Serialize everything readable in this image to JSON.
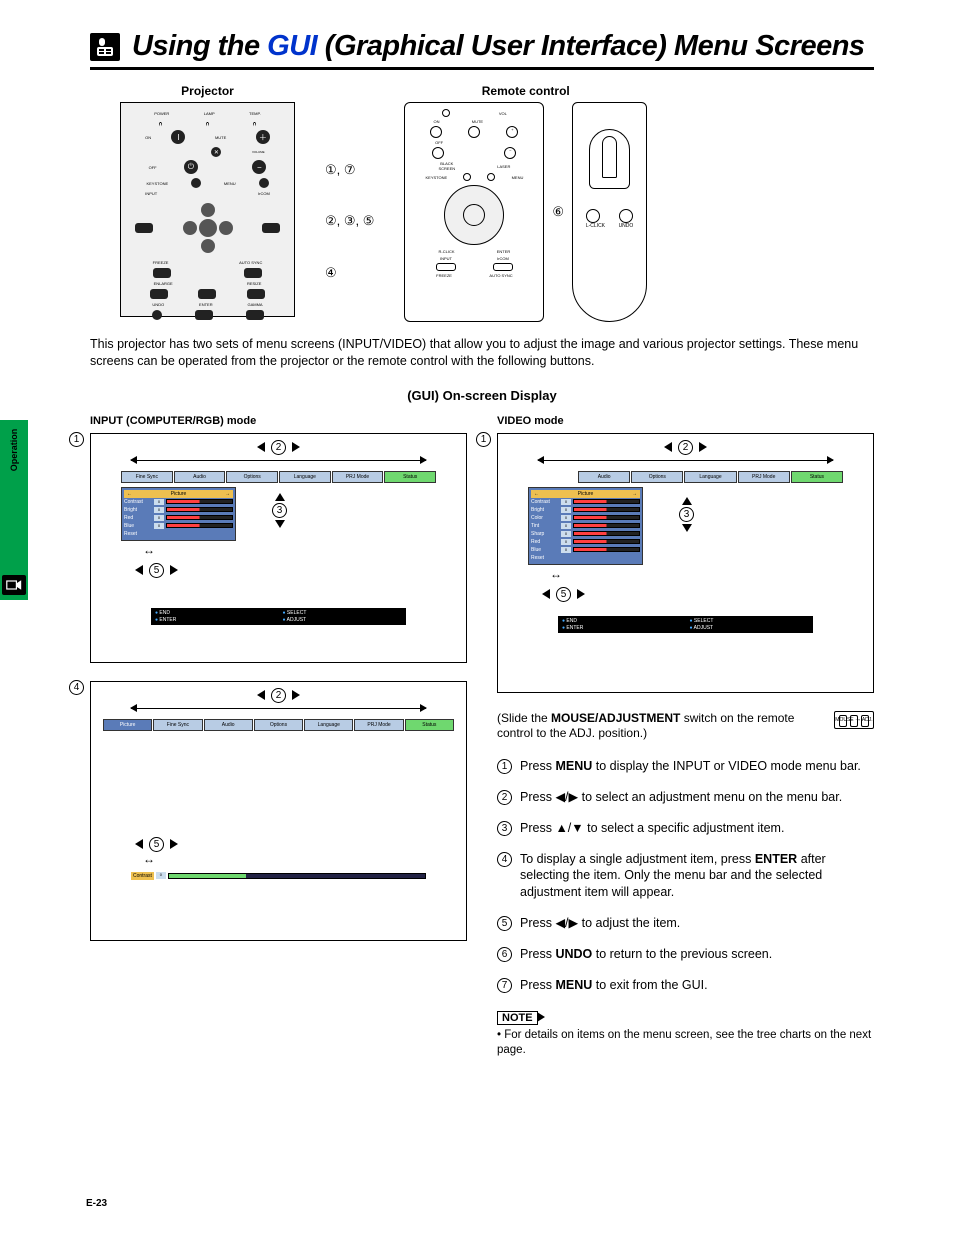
{
  "title": {
    "pre": "Using the ",
    "blue": "GUI",
    "post": " (Graphical User Interface) Menu Screens"
  },
  "side_tab": "Operation",
  "devices": {
    "projector_label": "Projector",
    "remote_label": "Remote control",
    "proj_labels": {
      "power": "POWER",
      "lamp": "LAMP",
      "temp": "TEMP.",
      "on": "ON",
      "mute": "MUTE",
      "off": "OFF",
      "volume": "VOLUME",
      "keystone": "KEYSTONE",
      "menu": "MENU",
      "input": "INPUT",
      "ircom": "IrCOM",
      "freeze": "FREEZE",
      "autosync": "AUTO SYNC",
      "enlarge": "ENLARGE",
      "resize": "RESIZE",
      "undo": "UNDO",
      "enter": "ENTER",
      "gamma": "GAMMA"
    },
    "rem_labels": {
      "vol": "VOL",
      "on": "ON",
      "mute": "MUTE",
      "off": "OFF",
      "laser": "LASER",
      "black": "BLACK\nSCREEN",
      "keystone": "KEYSTONE",
      "menu": "MENU",
      "rclick": "R-CLICK",
      "enter": "ENTER",
      "input": "INPUT",
      "ircom": "IrCOM",
      "freeze": "FREEZE",
      "autosync": "AUTO SYNC",
      "lclick": "L-CLICK",
      "undo": "UNDO"
    }
  },
  "callouts": {
    "r1": "①, ⑦",
    "r2": "②, ③, ⑤",
    "r3": "④",
    "r_right": "⑥"
  },
  "intro": "This projector has two sets of menu screens (INPUT/VIDEO) that allow you to adjust the image and various projector settings. These menu screens can be operated from the projector or the remote control with the following buttons.",
  "osd_heading": "(GUI) On-screen Display",
  "modes": {
    "input": "INPUT (COMPUTER/RGB) mode",
    "video": "VIDEO mode"
  },
  "tabs_input": [
    "Fine Sync",
    "Audio",
    "Options",
    "Language",
    "PRJ Mode",
    "Status"
  ],
  "tabs_input_full": [
    "Picture",
    "Fine Sync",
    "Audio",
    "Options",
    "Language",
    "PRJ Mode",
    "Status"
  ],
  "tabs_video": [
    "Audio",
    "Options",
    "Language",
    "PRJ Mode",
    "Status"
  ],
  "picture_panel": {
    "header": "Picture",
    "rows_input": [
      "Contrast",
      "Bright",
      "Red",
      "Blue",
      "Reset"
    ],
    "rows_video": [
      "Contrast",
      "Bright",
      "Color",
      "Tint",
      "Sharp",
      "Red",
      "Blue",
      "Reset"
    ]
  },
  "slider_single": "Contrast",
  "help": {
    "end": "END",
    "select": "SELECT",
    "enter": "ENTER",
    "adjust": "ADJUST"
  },
  "circled": {
    "n1": "1",
    "n2": "2",
    "n3": "3",
    "n4": "4",
    "n5": "5",
    "n6": "6",
    "n7": "7"
  },
  "slide_note": {
    "l1": "(Slide the ",
    "bold": "MOUSE/ADJUSTMENT",
    "l2": " switch on the remote control to the ADJ. position.)",
    "switch_l": "MOUSE",
    "switch_r": "ADJ."
  },
  "steps": [
    {
      "n": "1",
      "pre": "Press ",
      "b": "MENU",
      "post": " to display the INPUT or VIDEO mode menu bar."
    },
    {
      "n": "2",
      "pre": "Press ",
      "sym": "◀/▶",
      "post": " to select an adjustment menu on the menu bar."
    },
    {
      "n": "3",
      "pre": "Press ",
      "sym": "▲/▼",
      "post": " to select a specific adjustment item."
    },
    {
      "n": "4",
      "pre": "To display a single adjustment item, press ",
      "b": "ENTER",
      "post": " after selecting the item. Only the menu bar and the selected adjustment item will appear."
    },
    {
      "n": "5",
      "pre": "Press ",
      "sym": "◀/▶",
      "post": " to adjust the item."
    },
    {
      "n": "6",
      "pre": "Press ",
      "b": "UNDO",
      "post": " to return to the previous screen."
    },
    {
      "n": "7",
      "pre": "Press ",
      "b": "MENU",
      "post": " to exit from the GUI."
    }
  ],
  "note": {
    "head": "NOTE",
    "text": "• For details on items on the menu screen, see the tree charts on the next page."
  },
  "page_num": "E-23"
}
